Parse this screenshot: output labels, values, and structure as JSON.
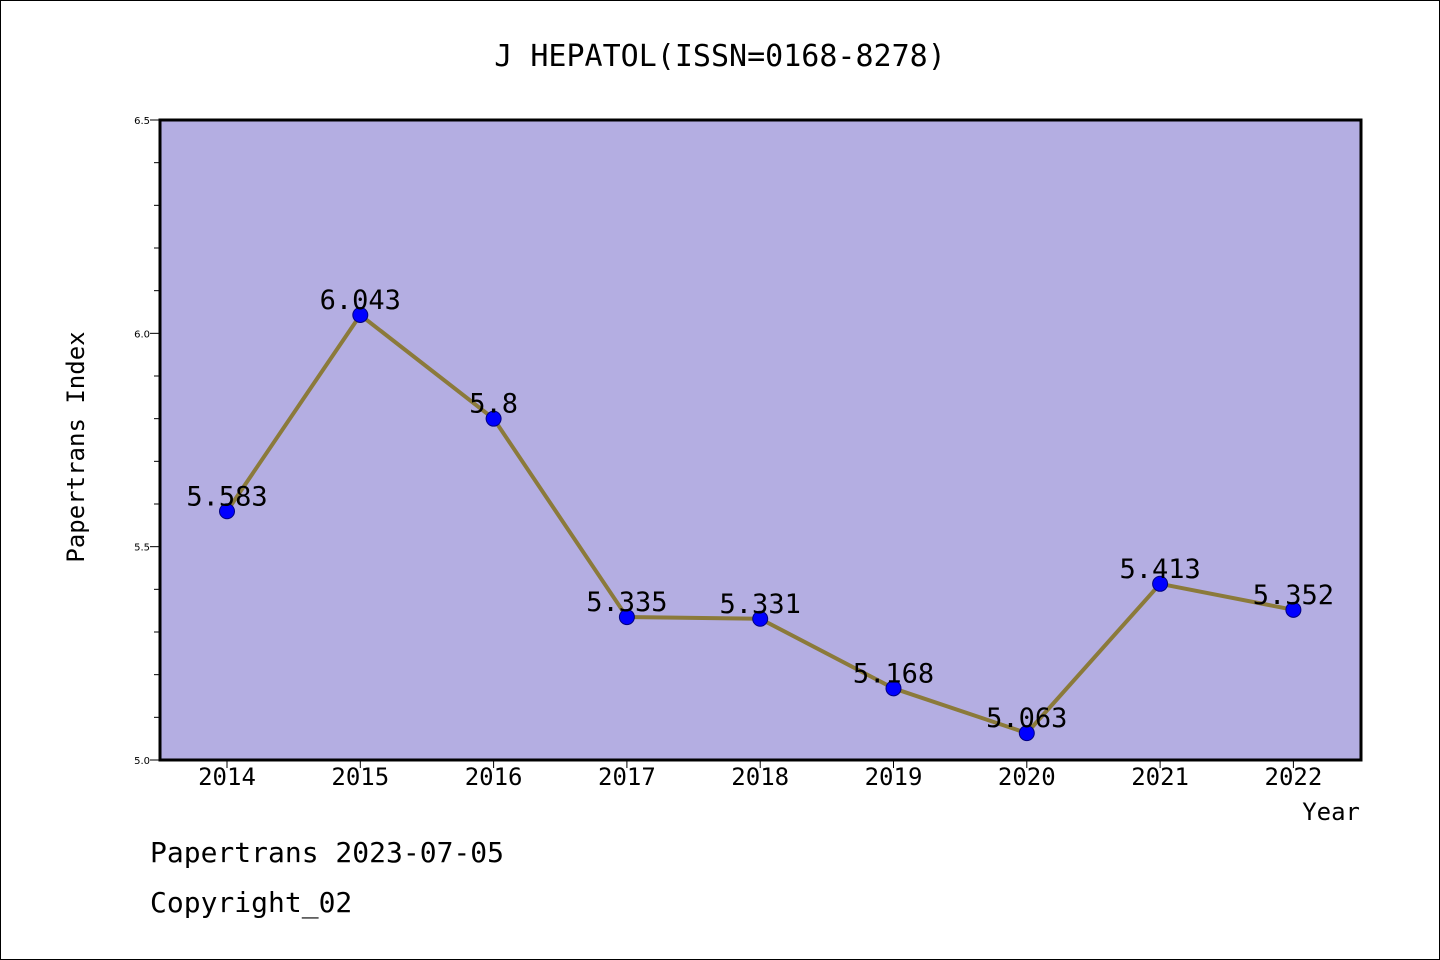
{
  "chart_data": {
    "type": "line",
    "title": "J HEPATOL(ISSN=0168-8278)",
    "xlabel": "Year",
    "ylabel": "Papertrans Index",
    "categories": [
      "2014",
      "2015",
      "2016",
      "2017",
      "2018",
      "2019",
      "2020",
      "2021",
      "2022"
    ],
    "series": [
      {
        "values": [
          5.583,
          6.043,
          5.8,
          5.335,
          5.331,
          5.168,
          5.063,
          5.413,
          5.352
        ]
      }
    ],
    "data_labels": [
      "5.583",
      "6.043",
      "5.8",
      "5.335",
      "5.331",
      "5.168",
      "5.063",
      "5.413",
      "5.352"
    ],
    "ylim": [
      5.0,
      6.5
    ],
    "y_ticks": [
      "5.0",
      "5.5",
      "6.0",
      "6.5"
    ],
    "colors": {
      "plot_background": "#b4aee2",
      "line": "#8b7a3a",
      "marker": "#0000ff"
    },
    "grid": false,
    "legend": "none"
  },
  "footer": {
    "date_line": "Papertrans 2023-07-05",
    "copyright_line": "Copyright_02"
  }
}
